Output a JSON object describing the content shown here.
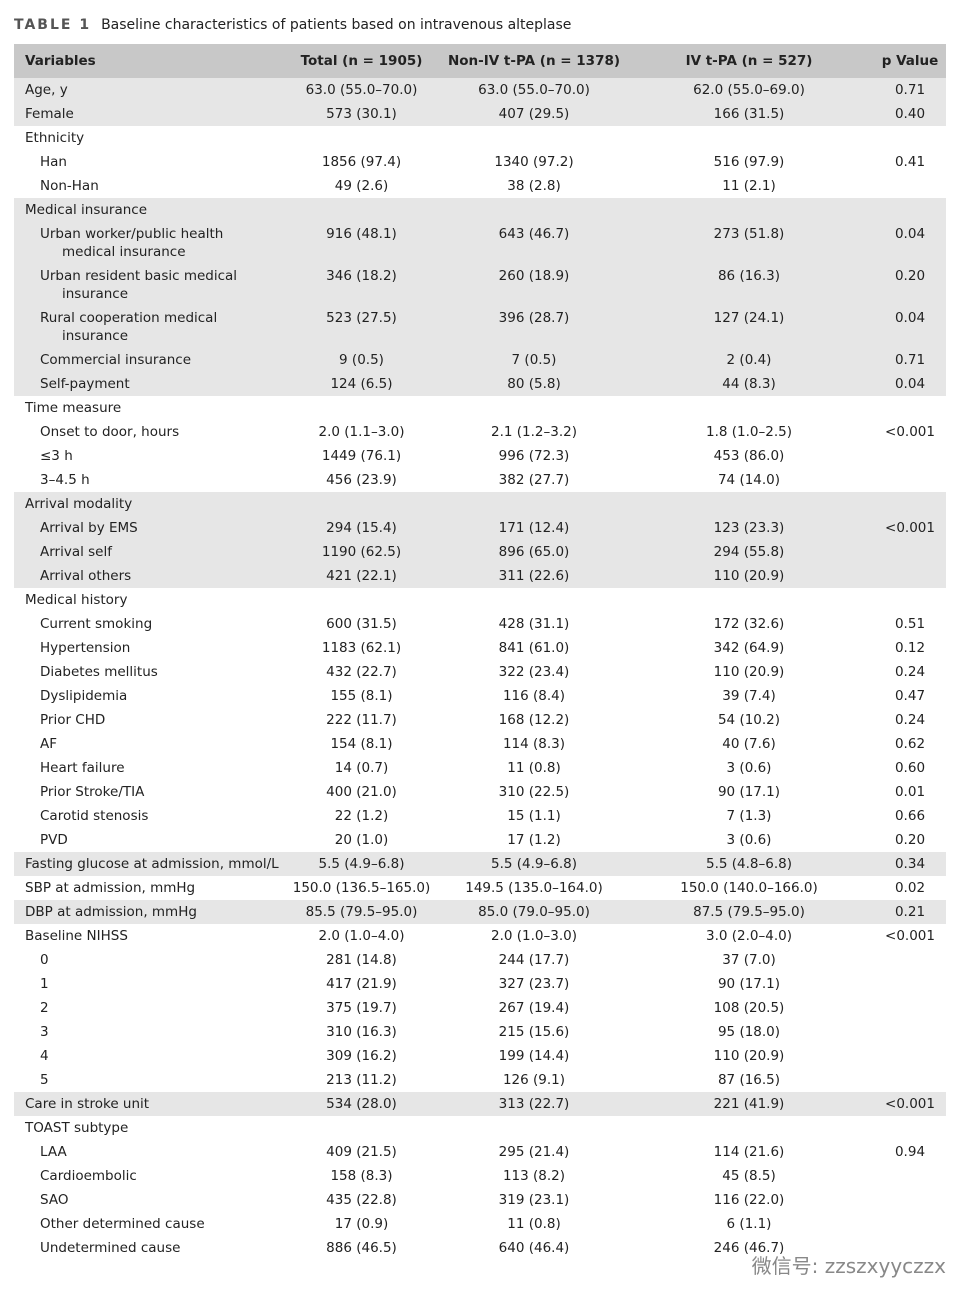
{
  "caption": {
    "label": "TABLE 1",
    "text": "Baseline characteristics of patients based on intravenous alteplase"
  },
  "table": {
    "header": [
      "Variables",
      "Total (n = 1905)",
      "Non-IV t-PA (n = 1378)",
      "IV t-PA (n = 527)",
      "p Value"
    ],
    "groups": [
      {
        "shaded": true,
        "rows": [
          [
            "Age, y",
            "63.0 (55.0–70.0)",
            "63.0 (55.0–70.0)",
            "62.0 (55.0–69.0)",
            "0.71"
          ]
        ]
      },
      {
        "shaded": true,
        "rows": [
          [
            "Female",
            "573 (30.1)",
            "407 (29.5)",
            "166 (31.5)",
            "0.40"
          ]
        ]
      },
      {
        "shaded": false,
        "rows": [
          [
            "Ethnicity"
          ],
          [
            "Han",
            "1856 (97.4)",
            "1340 (97.2)",
            "516 (97.9)",
            "0.41"
          ],
          [
            "Non-Han",
            "49 (2.6)",
            "38 (2.8)",
            "11 (2.1)"
          ]
        ]
      },
      {
        "shaded": true,
        "rows": [
          [
            "Medical insurance"
          ],
          [
            "Urban worker/public health medical insurance",
            "916 (48.1)",
            "643 (46.7)",
            "273 (51.8)",
            "0.04"
          ],
          [
            "Urban resident basic medical insurance",
            "346 (18.2)",
            "260 (18.9)",
            "86 (16.3)",
            "0.20"
          ],
          [
            "Rural cooperation medical insurance",
            "523 (27.5)",
            "396 (28.7)",
            "127 (24.1)",
            "0.04"
          ],
          [
            "Commercial insurance",
            "9 (0.5)",
            "7 (0.5)",
            "2 (0.4)",
            "0.71"
          ],
          [
            "Self-payment",
            "124 (6.5)",
            "80 (5.8)",
            "44 (8.3)",
            "0.04"
          ]
        ]
      },
      {
        "shaded": false,
        "rows": [
          [
            "Time measure"
          ],
          [
            "Onset to door, hours",
            "2.0 (1.1–3.0)",
            "2.1 (1.2–3.2)",
            "1.8 (1.0–2.5)",
            "<0.001"
          ],
          [
            "≤3 h",
            "1449 (76.1)",
            "996 (72.3)",
            "453 (86.0)"
          ],
          [
            "3–4.5 h",
            "456 (23.9)",
            "382 (27.7)",
            "74 (14.0)"
          ]
        ]
      },
      {
        "shaded": true,
        "rows": [
          [
            "Arrival modality"
          ],
          [
            "Arrival by EMS",
            "294 (15.4)",
            "171 (12.4)",
            "123 (23.3)",
            "<0.001"
          ],
          [
            "Arrival self",
            "1190 (62.5)",
            "896 (65.0)",
            "294 (55.8)"
          ],
          [
            "Arrival others",
            "421 (22.1)",
            "311 (22.6)",
            "110 (20.9)"
          ]
        ]
      },
      {
        "shaded": false,
        "rows": [
          [
            "Medical history"
          ],
          [
            "Current smoking",
            "600 (31.5)",
            "428 (31.1)",
            "172 (32.6)",
            "0.51"
          ],
          [
            "Hypertension",
            "1183 (62.1)",
            "841 (61.0)",
            "342 (64.9)",
            "0.12"
          ],
          [
            "Diabetes mellitus",
            "432 (22.7)",
            "322 (23.4)",
            "110 (20.9)",
            "0.24"
          ],
          [
            "Dyslipidemia",
            "155 (8.1)",
            "116 (8.4)",
            "39 (7.4)",
            "0.47"
          ],
          [
            "Prior CHD",
            "222 (11.7)",
            "168 (12.2)",
            "54 (10.2)",
            "0.24"
          ],
          [
            "AF",
            "154 (8.1)",
            "114 (8.3)",
            "40 (7.6)",
            "0.62"
          ],
          [
            "Heart failure",
            "14 (0.7)",
            "11 (0.8)",
            "3 (0.6)",
            "0.60"
          ],
          [
            "Prior Stroke/TIA",
            "400 (21.0)",
            "310 (22.5)",
            "90 (17.1)",
            "0.01"
          ],
          [
            "Carotid stenosis",
            "22 (1.2)",
            "15 (1.1)",
            "7 (1.3)",
            "0.66"
          ],
          [
            "PVD",
            "20 (1.0)",
            "17 (1.2)",
            "3 (0.6)",
            "0.20"
          ]
        ]
      },
      {
        "shaded": true,
        "rows": [
          [
            "Fasting glucose at admission, mmol/L",
            "5.5 (4.9–6.8)",
            "5.5 (4.9–6.8)",
            "5.5 (4.8–6.8)",
            "0.34"
          ]
        ]
      },
      {
        "shaded": false,
        "rows": [
          [
            "SBP at admission, mmHg",
            "150.0 (136.5–165.0)",
            "149.5 (135.0–164.0)",
            "150.0 (140.0–166.0)",
            "0.02"
          ]
        ]
      },
      {
        "shaded": true,
        "rows": [
          [
            "DBP at admission, mmHg",
            "85.5 (79.5–95.0)",
            "85.0 (79.0–95.0)",
            "87.5 (79.5–95.0)",
            "0.21"
          ]
        ]
      },
      {
        "shaded": false,
        "rows": [
          [
            "Baseline NIHSS",
            "2.0 (1.0–4.0)",
            "2.0 (1.0–3.0)",
            "3.0 (2.0–4.0)",
            "<0.001"
          ],
          [
            "0",
            "281 (14.8)",
            "244 (17.7)",
            "37 (7.0)"
          ],
          [
            "1",
            "417 (21.9)",
            "327 (23.7)",
            "90 (17.1)"
          ],
          [
            "2",
            "375 (19.7)",
            "267 (19.4)",
            "108 (20.5)"
          ],
          [
            "3",
            "310 (16.3)",
            "215 (15.6)",
            "95 (18.0)"
          ],
          [
            "4",
            "309 (16.2)",
            "199 (14.4)",
            "110 (20.9)"
          ],
          [
            "5",
            "213 (11.2)",
            "126 (9.1)",
            "87 (16.5)"
          ]
        ]
      },
      {
        "shaded": true,
        "rows": [
          [
            "Care in stroke unit",
            "534 (28.0)",
            "313 (22.7)",
            "221 (41.9)",
            "<0.001"
          ]
        ]
      },
      {
        "shaded": false,
        "rows": [
          [
            "TOAST subtype"
          ],
          [
            "LAA",
            "409 (21.5)",
            "295 (21.4)",
            "114 (21.6)",
            "0.94"
          ],
          [
            "Cardioembolic",
            "158 (8.3)",
            "113 (8.2)",
            "45 (8.5)"
          ],
          [
            "SAO",
            "435 (22.8)",
            "319 (23.1)",
            "116 (22.0)"
          ],
          [
            "Other determined cause",
            "17 (0.9)",
            "11 (0.8)",
            "6 (1.1)"
          ],
          [
            "Undetermined cause",
            "886 (46.5)",
            "640 (46.4)",
            "246 (46.7)"
          ]
        ]
      }
    ]
  },
  "watermark": "微信号: zzszxyyczzx"
}
